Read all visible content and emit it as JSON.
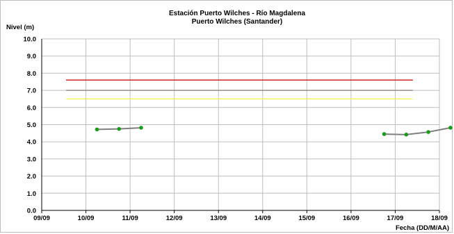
{
  "chart_data": {
    "type": "line",
    "title": "Estación Puerto Wilches - Río Magdalena",
    "subtitle": "Puerto Wilches (Santander)",
    "ylabel": "Nivel (m)",
    "xlabel": "Fecha (DD/M/AA)",
    "ylim": [
      0,
      10
    ],
    "yticks": [
      "0.0",
      "1.0",
      "2.0",
      "3.0",
      "4.0",
      "5.0",
      "6.0",
      "7.0",
      "8.0",
      "9.0",
      "10.0"
    ],
    "xlim": [
      0,
      9
    ],
    "xticks": [
      "09/09",
      "10/09",
      "11/09",
      "12/09",
      "13/09",
      "14/09",
      "15/09",
      "16/09",
      "17/09",
      "18/09"
    ],
    "grid": true,
    "series": [
      {
        "segment": 1,
        "color": "#7f7f7f",
        "marker_color": "#1a9a1a",
        "x": [
          1.25,
          1.75,
          2.25
        ],
        "y": [
          4.72,
          4.75,
          4.82
        ]
      },
      {
        "segment": 2,
        "color": "#7f7f7f",
        "marker_color": "#1a9a1a",
        "x": [
          7.75,
          8.25,
          8.75,
          9.25
        ],
        "y": [
          4.45,
          4.42,
          4.57,
          4.82
        ]
      }
    ],
    "thresholds": [
      {
        "y": 7.6,
        "color": "#c00000"
      },
      {
        "y": 7.0,
        "color": "#8b7d6b"
      },
      {
        "y": 6.5,
        "color": "#ffff44"
      }
    ],
    "threshold_x_range": [
      0.55,
      8.4
    ]
  }
}
